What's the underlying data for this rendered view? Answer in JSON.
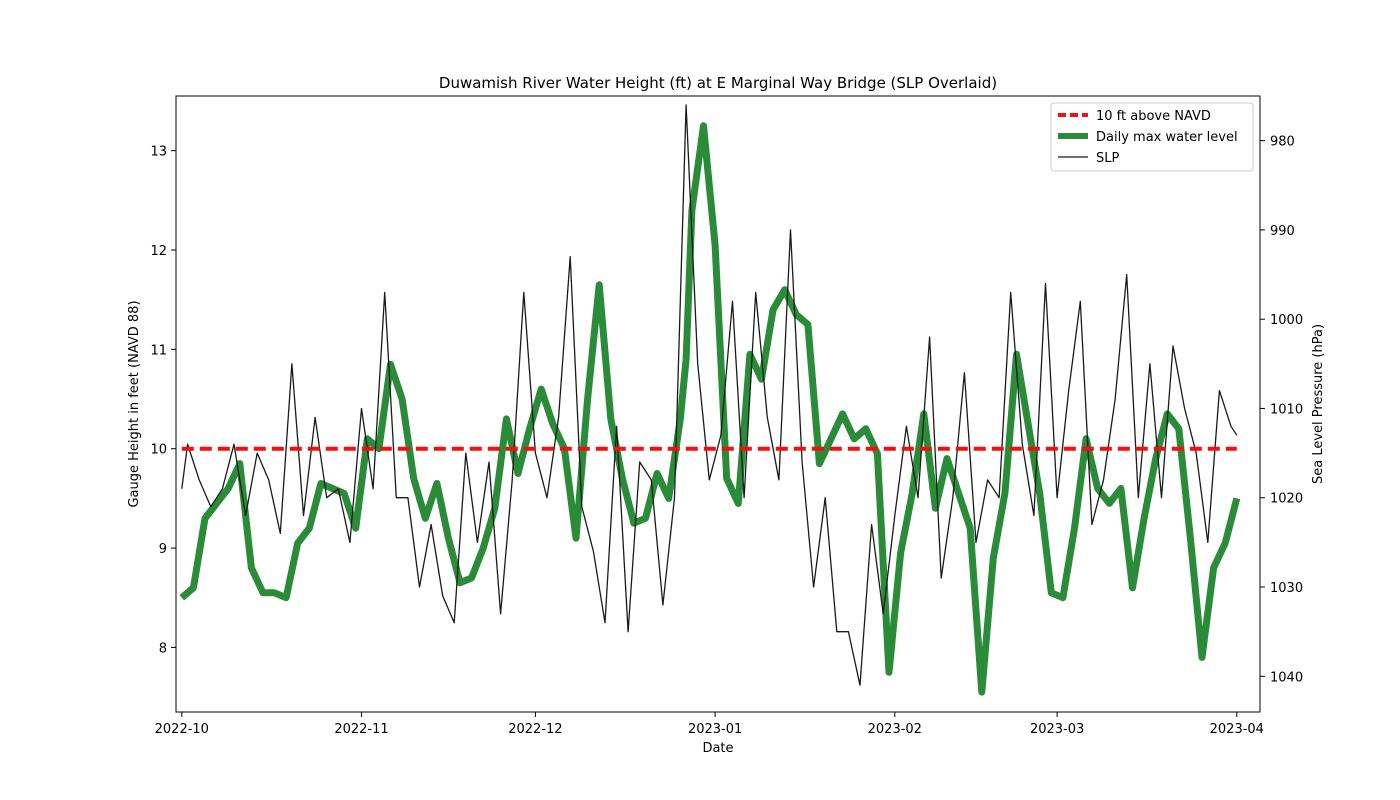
{
  "chart_data": {
    "type": "line",
    "title": "Duwamish River Water Height (ft) at E Marginal Way Bridge (SLP Overlaid)",
    "xlabel": "Date",
    "ylabel_left": "Gauge Height in feet (NAVD 88)",
    "ylabel_right": "Sea Level Pressure (hPa)",
    "x_ticks": [
      "2022-10",
      "2022-11",
      "2022-12",
      "2023-01",
      "2023-02",
      "2023-03",
      "2023-04"
    ],
    "x_tick_dates": [
      "2022-10-01",
      "2022-11-01",
      "2022-12-01",
      "2023-01-01",
      "2023-02-01",
      "2023-03-01",
      "2023-04-01"
    ],
    "xlim": [
      "2022-09-30",
      "2023-04-05"
    ],
    "ylim_left": [
      7.35,
      13.55
    ],
    "yticks_left": [
      8,
      9,
      10,
      11,
      12,
      13
    ],
    "ylim_right": [
      1044,
      975
    ],
    "yticks_right": [
      980,
      990,
      1000,
      1010,
      1020,
      1030,
      1040
    ],
    "right_axis_inverted": true,
    "grid": false,
    "legend_position": "top-right",
    "legend": [
      "10 ft above NAVD",
      "Daily max water level",
      "SLP"
    ],
    "series": [
      {
        "name": "10 ft above NAVD",
        "axis": "left",
        "color": "#ee1111",
        "style": "dashed",
        "x": [
          "2022-10-01",
          "2023-04-01"
        ],
        "y": [
          10,
          10
        ]
      },
      {
        "name": "Daily max water level",
        "axis": "left",
        "color": "#2a8c38",
        "style": "solid",
        "x": [
          "2022-10-01",
          "2022-10-03",
          "2022-10-05",
          "2022-10-07",
          "2022-10-09",
          "2022-10-11",
          "2022-10-13",
          "2022-10-15",
          "2022-10-17",
          "2022-10-19",
          "2022-10-21",
          "2022-10-23",
          "2022-10-25",
          "2022-10-27",
          "2022-10-29",
          "2022-10-31",
          "2022-11-02",
          "2022-11-04",
          "2022-11-06",
          "2022-11-08",
          "2022-11-10",
          "2022-11-12",
          "2022-11-14",
          "2022-11-16",
          "2022-11-18",
          "2022-11-20",
          "2022-11-22",
          "2022-11-24",
          "2022-11-26",
          "2022-11-28",
          "2022-11-30",
          "2022-12-02",
          "2022-12-04",
          "2022-12-06",
          "2022-12-08",
          "2022-12-10",
          "2022-12-12",
          "2022-12-14",
          "2022-12-16",
          "2022-12-18",
          "2022-12-20",
          "2022-12-22",
          "2022-12-24",
          "2022-12-26",
          "2022-12-27",
          "2022-12-28",
          "2022-12-30",
          "2023-01-01",
          "2023-01-03",
          "2023-01-05",
          "2023-01-07",
          "2023-01-09",
          "2023-01-11",
          "2023-01-13",
          "2023-01-15",
          "2023-01-17",
          "2023-01-19",
          "2023-01-21",
          "2023-01-23",
          "2023-01-25",
          "2023-01-27",
          "2023-01-29",
          "2023-01-31",
          "2023-02-02",
          "2023-02-04",
          "2023-02-06",
          "2023-02-08",
          "2023-02-10",
          "2023-02-12",
          "2023-02-14",
          "2023-02-16",
          "2023-02-18",
          "2023-02-20",
          "2023-02-22",
          "2023-02-24",
          "2023-02-26",
          "2023-02-28",
          "2023-03-02",
          "2023-03-04",
          "2023-03-06",
          "2023-03-08",
          "2023-03-10",
          "2023-03-12",
          "2023-03-14",
          "2023-03-16",
          "2023-03-18",
          "2023-03-20",
          "2023-03-22",
          "2023-03-24",
          "2023-03-26",
          "2023-03-28",
          "2023-03-30",
          "2023-04-01"
        ],
        "y": [
          8.5,
          8.6,
          9.3,
          9.45,
          9.6,
          9.85,
          8.8,
          8.55,
          8.55,
          8.5,
          9.05,
          9.2,
          9.65,
          9.6,
          9.55,
          9.2,
          10.1,
          10.0,
          10.85,
          10.5,
          9.7,
          9.3,
          9.65,
          9.1,
          8.65,
          8.7,
          9.0,
          9.4,
          10.3,
          9.75,
          10.2,
          10.6,
          10.25,
          10.0,
          9.1,
          10.5,
          11.65,
          10.3,
          9.7,
          9.25,
          9.3,
          9.75,
          9.5,
          10.3,
          10.9,
          12.4,
          13.25,
          12.05,
          9.7,
          9.45,
          10.95,
          10.7,
          11.4,
          11.6,
          11.35,
          11.25,
          9.85,
          10.1,
          10.35,
          10.1,
          10.2,
          9.95,
          7.75,
          8.95,
          9.55,
          10.35,
          9.4,
          9.9,
          9.55,
          9.2,
          7.55,
          8.9,
          9.55,
          10.95,
          10.25,
          9.55,
          8.55,
          8.5,
          9.2,
          10.1,
          9.6,
          9.45,
          9.6,
          8.6,
          9.3,
          9.9,
          10.35,
          10.2,
          9.1,
          7.9,
          8.8,
          9.05,
          9.5
        ]
      },
      {
        "name": "SLP",
        "axis": "right",
        "color": "#1a1a1a",
        "style": "solid",
        "x": [
          "2022-10-01",
          "2022-10-02",
          "2022-10-04",
          "2022-10-06",
          "2022-10-08",
          "2022-10-10",
          "2022-10-12",
          "2022-10-14",
          "2022-10-16",
          "2022-10-18",
          "2022-10-20",
          "2022-10-22",
          "2022-10-24",
          "2022-10-26",
          "2022-10-28",
          "2022-10-30",
          "2022-11-01",
          "2022-11-03",
          "2022-11-05",
          "2022-11-07",
          "2022-11-09",
          "2022-11-11",
          "2022-11-13",
          "2022-11-15",
          "2022-11-17",
          "2022-11-19",
          "2022-11-21",
          "2022-11-23",
          "2022-11-25",
          "2022-11-27",
          "2022-11-29",
          "2022-12-01",
          "2022-12-03",
          "2022-12-05",
          "2022-12-07",
          "2022-12-09",
          "2022-12-11",
          "2022-12-13",
          "2022-12-15",
          "2022-12-17",
          "2022-12-19",
          "2022-12-21",
          "2022-12-23",
          "2022-12-25",
          "2022-12-27",
          "2022-12-29",
          "2022-12-31",
          "2023-01-02",
          "2023-01-04",
          "2023-01-06",
          "2023-01-08",
          "2023-01-10",
          "2023-01-12",
          "2023-01-14",
          "2023-01-16",
          "2023-01-18",
          "2023-01-20",
          "2023-01-22",
          "2023-01-24",
          "2023-01-26",
          "2023-01-28",
          "2023-01-30",
          "2023-02-01",
          "2023-02-03",
          "2023-02-05",
          "2023-02-07",
          "2023-02-09",
          "2023-02-11",
          "2023-02-13",
          "2023-02-15",
          "2023-02-17",
          "2023-02-19",
          "2023-02-21",
          "2023-02-23",
          "2023-02-25",
          "2023-02-27",
          "2023-03-01",
          "2023-03-03",
          "2023-03-05",
          "2023-03-07",
          "2023-03-09",
          "2023-03-11",
          "2023-03-13",
          "2023-03-15",
          "2023-03-17",
          "2023-03-19",
          "2023-03-21",
          "2023-03-23",
          "2023-03-25",
          "2023-03-27",
          "2023-03-29",
          "2023-03-31",
          "2023-04-01"
        ],
        "y": [
          1019,
          1014,
          1018,
          1021,
          1019,
          1014,
          1022,
          1015,
          1018,
          1024,
          1005,
          1022,
          1011,
          1020,
          1019,
          1025,
          1010,
          1019,
          997,
          1020,
          1020,
          1030,
          1023,
          1031,
          1034,
          1015,
          1025,
          1016,
          1033,
          1018,
          997,
          1015,
          1020,
          1011,
          993,
          1021,
          1026,
          1034,
          1012,
          1035,
          1016,
          1018,
          1032,
          1020,
          976,
          1005,
          1018,
          1013,
          998,
          1020,
          997,
          1011,
          1018,
          990,
          1016,
          1030,
          1020,
          1035,
          1035,
          1041,
          1023,
          1033,
          1022,
          1012,
          1020,
          1002,
          1029,
          1020,
          1006,
          1025,
          1018,
          1020,
          997,
          1014,
          1022,
          996,
          1020,
          1008,
          998,
          1023,
          1018,
          1009,
          995,
          1020,
          1005,
          1020,
          1003,
          1010,
          1015,
          1025,
          1008,
          1012,
          1013
        ]
      }
    ]
  }
}
